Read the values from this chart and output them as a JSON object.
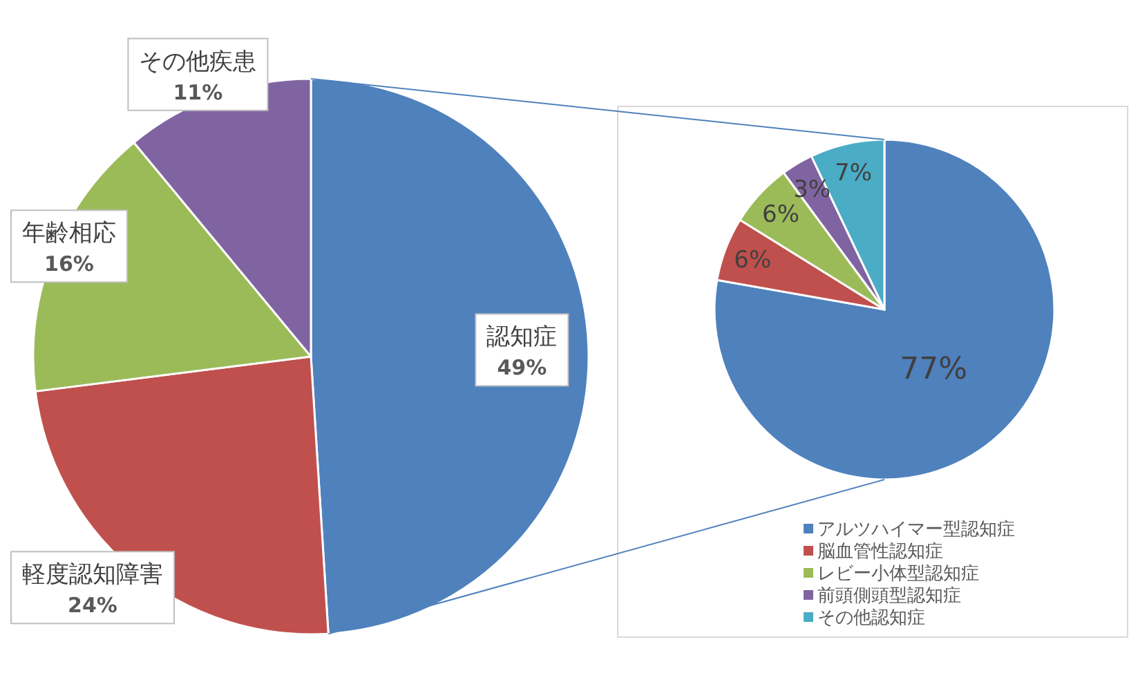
{
  "chart_data": [
    {
      "type": "pie",
      "categories": [
        "認知症",
        "軽度認知障害",
        "年齢相応",
        "その他疾患"
      ],
      "values": [
        49,
        24,
        16,
        11
      ],
      "colors": [
        "#4f81bd",
        "#c0504d",
        "#9bbb59",
        "#8064a2"
      ],
      "value_labels": [
        "49%",
        "24%",
        "16%",
        "11%"
      ],
      "legend": false
    },
    {
      "type": "pie",
      "categories": [
        "アルツハイマー型認知症",
        "脳血管性認知症",
        "レビー小体型認知症",
        "前頭側頭型認知症",
        "その他認知症"
      ],
      "values": [
        77,
        6,
        6,
        3,
        7
      ],
      "colors": [
        "#4f81bd",
        "#c0504d",
        "#9bbb59",
        "#8064a2",
        "#4bacc6"
      ],
      "value_labels": [
        "77%",
        "6%",
        "6%",
        "3%",
        "7%"
      ],
      "legend": "bottom"
    }
  ]
}
